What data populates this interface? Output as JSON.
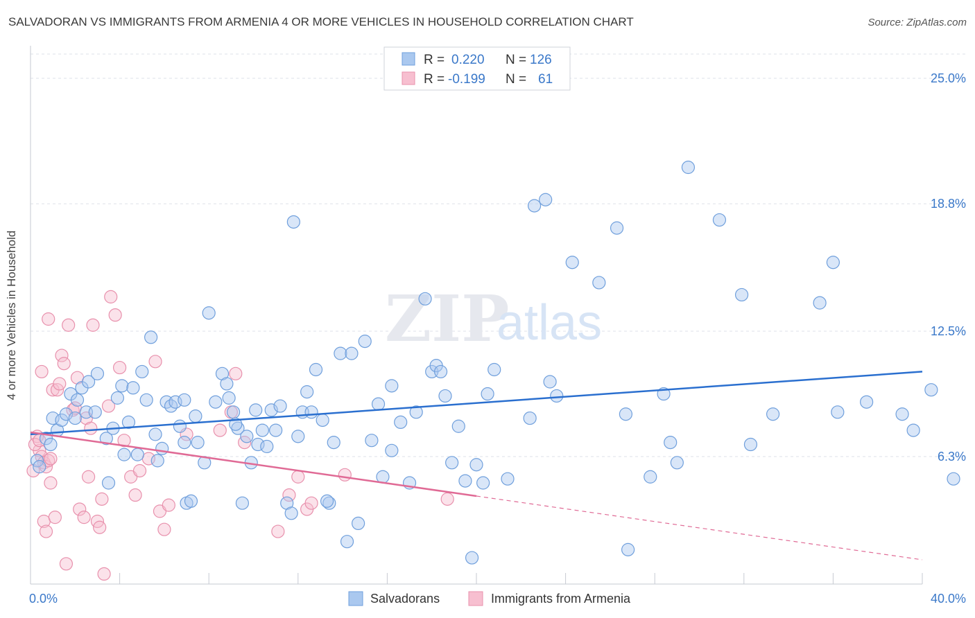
{
  "title": "SALVADORAN VS IMMIGRANTS FROM ARMENIA 4 OR MORE VEHICLES IN HOUSEHOLD CORRELATION CHART",
  "source": "Source: ZipAtlas.com",
  "watermark": {
    "zip": "ZIP",
    "atlas": "atlas"
  },
  "colors": {
    "blue_fill": "#aac8ef",
    "blue_stroke": "#6f9fdc",
    "blue_line": "#2a6fcf",
    "pink_fill": "#f7bfd0",
    "pink_stroke": "#e890ac",
    "pink_line": "#e06a95",
    "axis_text_blue": "#3a78c9",
    "grid": "#dde1e8"
  },
  "legend_top": [
    {
      "swatch": "blue",
      "r_label": "R =",
      "r_value": "0.220",
      "n_label": "N =",
      "n_value": "126"
    },
    {
      "swatch": "pink",
      "r_label": "R =",
      "r_value": "-0.199",
      "n_label": "N =",
      "n_value": "61"
    }
  ],
  "legend_bottom": [
    {
      "swatch": "blue",
      "label": "Salvadorans"
    },
    {
      "swatch": "pink",
      "label": "Immigrants from Armenia"
    }
  ],
  "chart_data": {
    "type": "scatter",
    "xlabel": "",
    "ylabel": "4 or more Vehicles in Household",
    "xlim": [
      0,
      40
    ],
    "ylim": [
      0,
      26.2
    ],
    "x_tick_labels": [
      {
        "value": 0,
        "label": "0.0%"
      },
      {
        "value": 40,
        "label": "40.0%"
      }
    ],
    "y_tick_labels": [
      {
        "value": 6.3,
        "label": "6.3%"
      },
      {
        "value": 12.5,
        "label": "12.5%"
      },
      {
        "value": 18.8,
        "label": "18.8%"
      },
      {
        "value": 25.0,
        "label": "25.0%"
      }
    ],
    "grid": true,
    "legend_position": "top-center",
    "series": [
      {
        "name": "Salvadorans",
        "color": "blue",
        "trend": {
          "x": [
            0,
            40
          ],
          "y": [
            7.4,
            10.5
          ],
          "dashed_from": null
        },
        "points": [
          [
            0.3,
            6.1
          ],
          [
            0.4,
            5.8
          ],
          [
            0.7,
            7.2
          ],
          [
            0.9,
            6.9
          ],
          [
            1.0,
            8.2
          ],
          [
            1.2,
            7.6
          ],
          [
            1.4,
            8.1
          ],
          [
            1.6,
            8.4
          ],
          [
            1.8,
            9.4
          ],
          [
            2.0,
            8.2
          ],
          [
            2.1,
            9.1
          ],
          [
            2.3,
            9.7
          ],
          [
            2.5,
            8.5
          ],
          [
            2.6,
            10.0
          ],
          [
            2.9,
            8.5
          ],
          [
            3.0,
            10.4
          ],
          [
            3.4,
            7.2
          ],
          [
            3.5,
            5.0
          ],
          [
            3.7,
            7.7
          ],
          [
            3.9,
            9.2
          ],
          [
            4.1,
            9.8
          ],
          [
            4.2,
            6.4
          ],
          [
            4.4,
            8.0
          ],
          [
            4.6,
            9.7
          ],
          [
            4.8,
            6.4
          ],
          [
            5.0,
            10.5
          ],
          [
            5.2,
            9.1
          ],
          [
            5.4,
            12.2
          ],
          [
            5.6,
            7.4
          ],
          [
            5.7,
            6.1
          ],
          [
            5.9,
            6.7
          ],
          [
            6.1,
            9.0
          ],
          [
            6.3,
            8.8
          ],
          [
            6.5,
            9.0
          ],
          [
            6.7,
            7.8
          ],
          [
            6.9,
            7.0
          ],
          [
            7.0,
            4.0
          ],
          [
            7.2,
            4.1
          ],
          [
            7.4,
            8.3
          ],
          [
            7.5,
            7.0
          ],
          [
            7.8,
            6.0
          ],
          [
            8.0,
            13.4
          ],
          [
            8.3,
            9.0
          ],
          [
            8.6,
            10.4
          ],
          [
            8.8,
            9.9
          ],
          [
            8.9,
            9.2
          ],
          [
            9.1,
            8.5
          ],
          [
            9.3,
            7.7
          ],
          [
            9.5,
            4.0
          ],
          [
            9.7,
            7.3
          ],
          [
            9.9,
            6.0
          ],
          [
            10.1,
            8.6
          ],
          [
            10.2,
            6.9
          ],
          [
            10.4,
            7.6
          ],
          [
            10.6,
            6.8
          ],
          [
            10.8,
            8.6
          ],
          [
            11.0,
            7.6
          ],
          [
            11.2,
            8.8
          ],
          [
            11.5,
            4.0
          ],
          [
            11.7,
            3.5
          ],
          [
            12.0,
            7.3
          ],
          [
            12.2,
            8.5
          ],
          [
            12.4,
            9.5
          ],
          [
            12.6,
            8.5
          ],
          [
            12.8,
            10.6
          ],
          [
            13.1,
            8.1
          ],
          [
            13.4,
            4.0
          ],
          [
            13.6,
            7.0
          ],
          [
            13.9,
            11.4
          ],
          [
            14.2,
            2.1
          ],
          [
            14.4,
            11.4
          ],
          [
            14.7,
            3.0
          ],
          [
            15.0,
            12.0
          ],
          [
            15.3,
            7.1
          ],
          [
            15.6,
            8.9
          ],
          [
            15.8,
            5.3
          ],
          [
            16.2,
            6.6
          ],
          [
            16.6,
            8.0
          ],
          [
            17.0,
            5.0
          ],
          [
            17.3,
            8.5
          ],
          [
            17.7,
            14.1
          ],
          [
            18.0,
            10.5
          ],
          [
            18.2,
            10.8
          ],
          [
            18.4,
            10.5
          ],
          [
            18.6,
            9.3
          ],
          [
            19.2,
            7.8
          ],
          [
            19.5,
            5.1
          ],
          [
            19.8,
            1.3
          ],
          [
            20.0,
            5.9
          ],
          [
            20.3,
            5.0
          ],
          [
            20.5,
            9.4
          ],
          [
            20.8,
            10.6
          ],
          [
            21.4,
            5.2
          ],
          [
            22.4,
            8.2
          ],
          [
            22.6,
            18.7
          ],
          [
            23.1,
            19.0
          ],
          [
            23.3,
            10.0
          ],
          [
            23.6,
            9.3
          ],
          [
            24.3,
            15.9
          ],
          [
            25.5,
            14.9
          ],
          [
            26.3,
            17.6
          ],
          [
            26.7,
            8.4
          ],
          [
            26.8,
            1.7
          ],
          [
            27.8,
            5.3
          ],
          [
            28.4,
            9.4
          ],
          [
            28.7,
            7.0
          ],
          [
            29.0,
            6.0
          ],
          [
            29.5,
            20.6
          ],
          [
            30.9,
            18.0
          ],
          [
            31.9,
            14.3
          ],
          [
            32.3,
            6.9
          ],
          [
            33.3,
            8.4
          ],
          [
            35.4,
            13.9
          ],
          [
            36.0,
            15.9
          ],
          [
            36.2,
            8.5
          ],
          [
            37.5,
            9.0
          ],
          [
            39.1,
            8.4
          ],
          [
            39.6,
            7.6
          ],
          [
            40.4,
            9.6
          ],
          [
            41.4,
            5.2
          ],
          [
            11.8,
            17.9
          ],
          [
            6.9,
            9.1
          ],
          [
            9.2,
            7.9
          ],
          [
            13.3,
            4.1
          ],
          [
            16.2,
            9.8
          ],
          [
            18.9,
            6.0
          ]
        ]
      },
      {
        "name": "Immigrants from Armenia",
        "color": "pink",
        "trend": {
          "x": [
            0,
            40
          ],
          "y": [
            7.5,
            1.2
          ],
          "dashed_from": 20
        },
        "points": [
          [
            0.1,
            5.6
          ],
          [
            0.3,
            7.3
          ],
          [
            0.4,
            6.6
          ],
          [
            0.5,
            6.3
          ],
          [
            0.6,
            6.0
          ],
          [
            0.7,
            5.8
          ],
          [
            0.8,
            6.1
          ],
          [
            0.9,
            6.2
          ],
          [
            0.5,
            10.5
          ],
          [
            0.6,
            3.1
          ],
          [
            0.7,
            2.6
          ],
          [
            0.8,
            13.1
          ],
          [
            0.9,
            5.0
          ],
          [
            1.0,
            9.6
          ],
          [
            1.1,
            3.3
          ],
          [
            1.2,
            9.6
          ],
          [
            1.3,
            9.9
          ],
          [
            1.4,
            11.3
          ],
          [
            1.5,
            10.9
          ],
          [
            1.6,
            1.0
          ],
          [
            1.7,
            12.8
          ],
          [
            1.9,
            8.6
          ],
          [
            2.0,
            8.7
          ],
          [
            2.1,
            10.2
          ],
          [
            2.2,
            3.7
          ],
          [
            2.4,
            3.3
          ],
          [
            2.5,
            8.2
          ],
          [
            2.6,
            5.3
          ],
          [
            2.7,
            7.7
          ],
          [
            2.8,
            12.8
          ],
          [
            3.0,
            3.1
          ],
          [
            3.1,
            2.8
          ],
          [
            3.2,
            4.2
          ],
          [
            3.3,
            0.5
          ],
          [
            3.5,
            8.8
          ],
          [
            3.6,
            14.2
          ],
          [
            3.8,
            13.3
          ],
          [
            4.0,
            10.7
          ],
          [
            4.2,
            7.1
          ],
          [
            4.5,
            5.3
          ],
          [
            4.7,
            4.4
          ],
          [
            4.9,
            5.6
          ],
          [
            5.3,
            6.2
          ],
          [
            5.6,
            11.0
          ],
          [
            5.8,
            3.6
          ],
          [
            6.0,
            2.7
          ],
          [
            6.2,
            3.9
          ],
          [
            7.0,
            7.4
          ],
          [
            8.5,
            7.6
          ],
          [
            9.0,
            8.5
          ],
          [
            9.2,
            10.4
          ],
          [
            9.6,
            7.0
          ],
          [
            11.1,
            2.6
          ],
          [
            11.6,
            4.4
          ],
          [
            12.0,
            5.3
          ],
          [
            12.4,
            3.7
          ],
          [
            12.6,
            4.0
          ],
          [
            14.1,
            5.4
          ],
          [
            18.7,
            4.2
          ],
          [
            0.2,
            6.9
          ],
          [
            0.4,
            7.1
          ]
        ]
      }
    ]
  }
}
